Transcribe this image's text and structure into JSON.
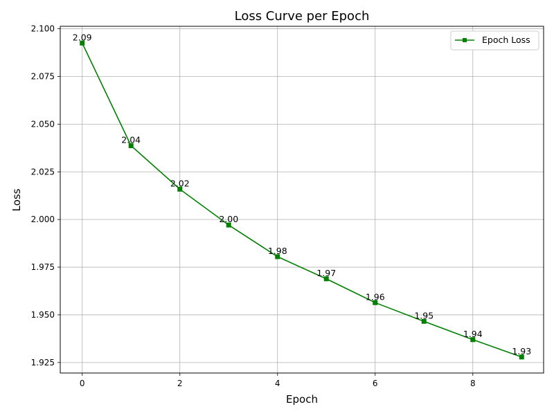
{
  "chart_data": {
    "type": "line",
    "title": "Loss Curve per Epoch",
    "xlabel": "Epoch",
    "ylabel": "Loss",
    "x": [
      0,
      1,
      2,
      3,
      4,
      5,
      6,
      7,
      8,
      9
    ],
    "series": [
      {
        "name": "Epoch Loss",
        "color": "#008000",
        "marker": "square",
        "values": [
          2.0925,
          2.0387,
          2.0159,
          1.9971,
          1.9805,
          1.9689,
          1.9564,
          1.9466,
          1.937,
          1.9279
        ],
        "data_labels": [
          "2.09",
          "2.04",
          "2.02",
          "2.00",
          "1.98",
          "1.97",
          "1.96",
          "1.95",
          "1.94",
          "1.93"
        ]
      }
    ],
    "xlim": [
      -0.45,
      9.45
    ],
    "ylim": [
      1.9195,
      2.1013
    ],
    "x_ticks": [
      0,
      2,
      4,
      6,
      8
    ],
    "x_tick_labels": [
      "0",
      "2",
      "4",
      "6",
      "8"
    ],
    "y_ticks": [
      1.925,
      1.95,
      1.975,
      2.0,
      2.025,
      2.05,
      2.075,
      2.1
    ],
    "y_tick_labels": [
      "1.925",
      "1.950",
      "1.975",
      "2.000",
      "2.025",
      "2.050",
      "2.075",
      "2.100"
    ],
    "grid": true,
    "legend_position": "top-right"
  }
}
